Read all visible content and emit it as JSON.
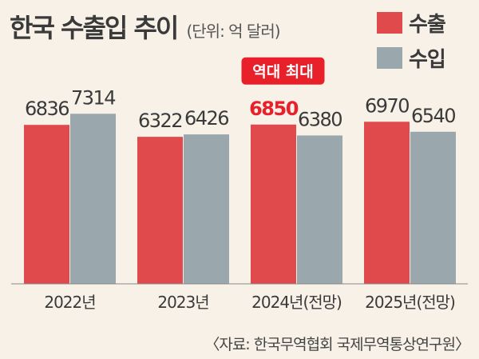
{
  "header": {
    "title": "한국 수출입 추이",
    "unit": "(단위: 억 달러)"
  },
  "source": "〈자료: 한국무역협회 국제무역통상연구원〉",
  "colors": {
    "export": "#e04a4c",
    "import": "#9aa7ad",
    "highlight": "#e8202a"
  },
  "chart_data": {
    "type": "bar",
    "categories": [
      "2022년",
      "2023년",
      "2024년(전망)",
      "2025년(전망)"
    ],
    "series": [
      {
        "name": "수출",
        "values": [
          6836,
          6322,
          6850,
          6970
        ]
      },
      {
        "name": "수입",
        "values": [
          7314,
          6426,
          6380,
          6540
        ]
      }
    ],
    "legend": [
      "수출",
      "수입"
    ],
    "legend_position": "top-right",
    "annotation": {
      "text": "역대 최대",
      "category_index": 2,
      "series_index": 0
    },
    "ylabel": "",
    "xlabel": "",
    "ylim": [
      0,
      7314
    ],
    "grid": false
  }
}
